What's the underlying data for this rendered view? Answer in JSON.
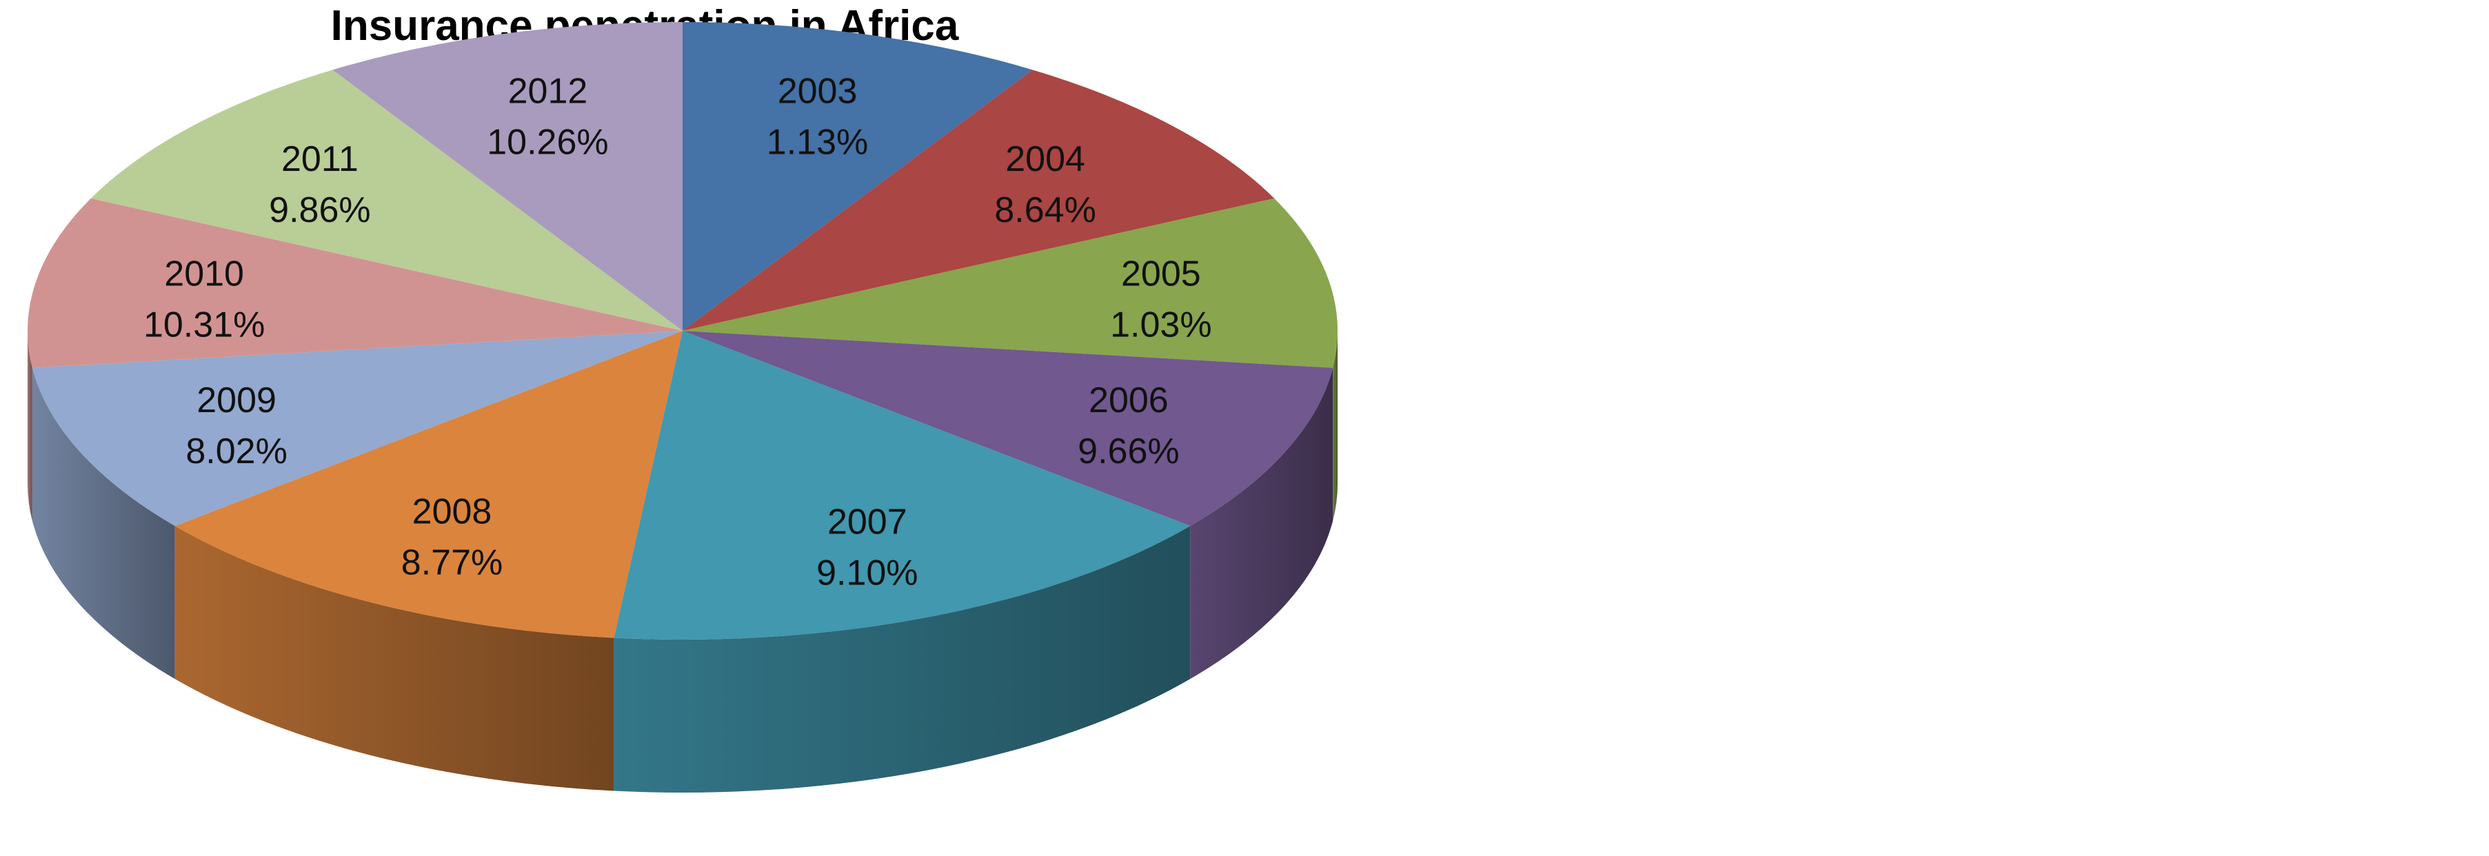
{
  "chart_data": {
    "type": "pie",
    "style": "3d",
    "title": "Insurance penetration in Africa",
    "categories": [
      "2003",
      "2004",
      "2005",
      "2006",
      "2007",
      "2008",
      "2009",
      "2010",
      "2011",
      "2012"
    ],
    "values": [
      1.13,
      8.64,
      1.03,
      9.66,
      9.1,
      8.77,
      8.02,
      10.31,
      9.86,
      10.26
    ],
    "value_labels": [
      "1.13%",
      "8.64%",
      "1.03%",
      "9.66%",
      "9.10%",
      "8.77%",
      "8.02%",
      "10.31%",
      "9.86%",
      "10.26%"
    ],
    "colors": [
      "#4572A7",
      "#AA4643",
      "#89A54E",
      "#71588F",
      "#4198AF",
      "#DB843D",
      "#93A9CF",
      "#D19392",
      "#B9CD96",
      "#A99BBD"
    ],
    "legend": "none",
    "slice_order": "clockwise from top"
  }
}
